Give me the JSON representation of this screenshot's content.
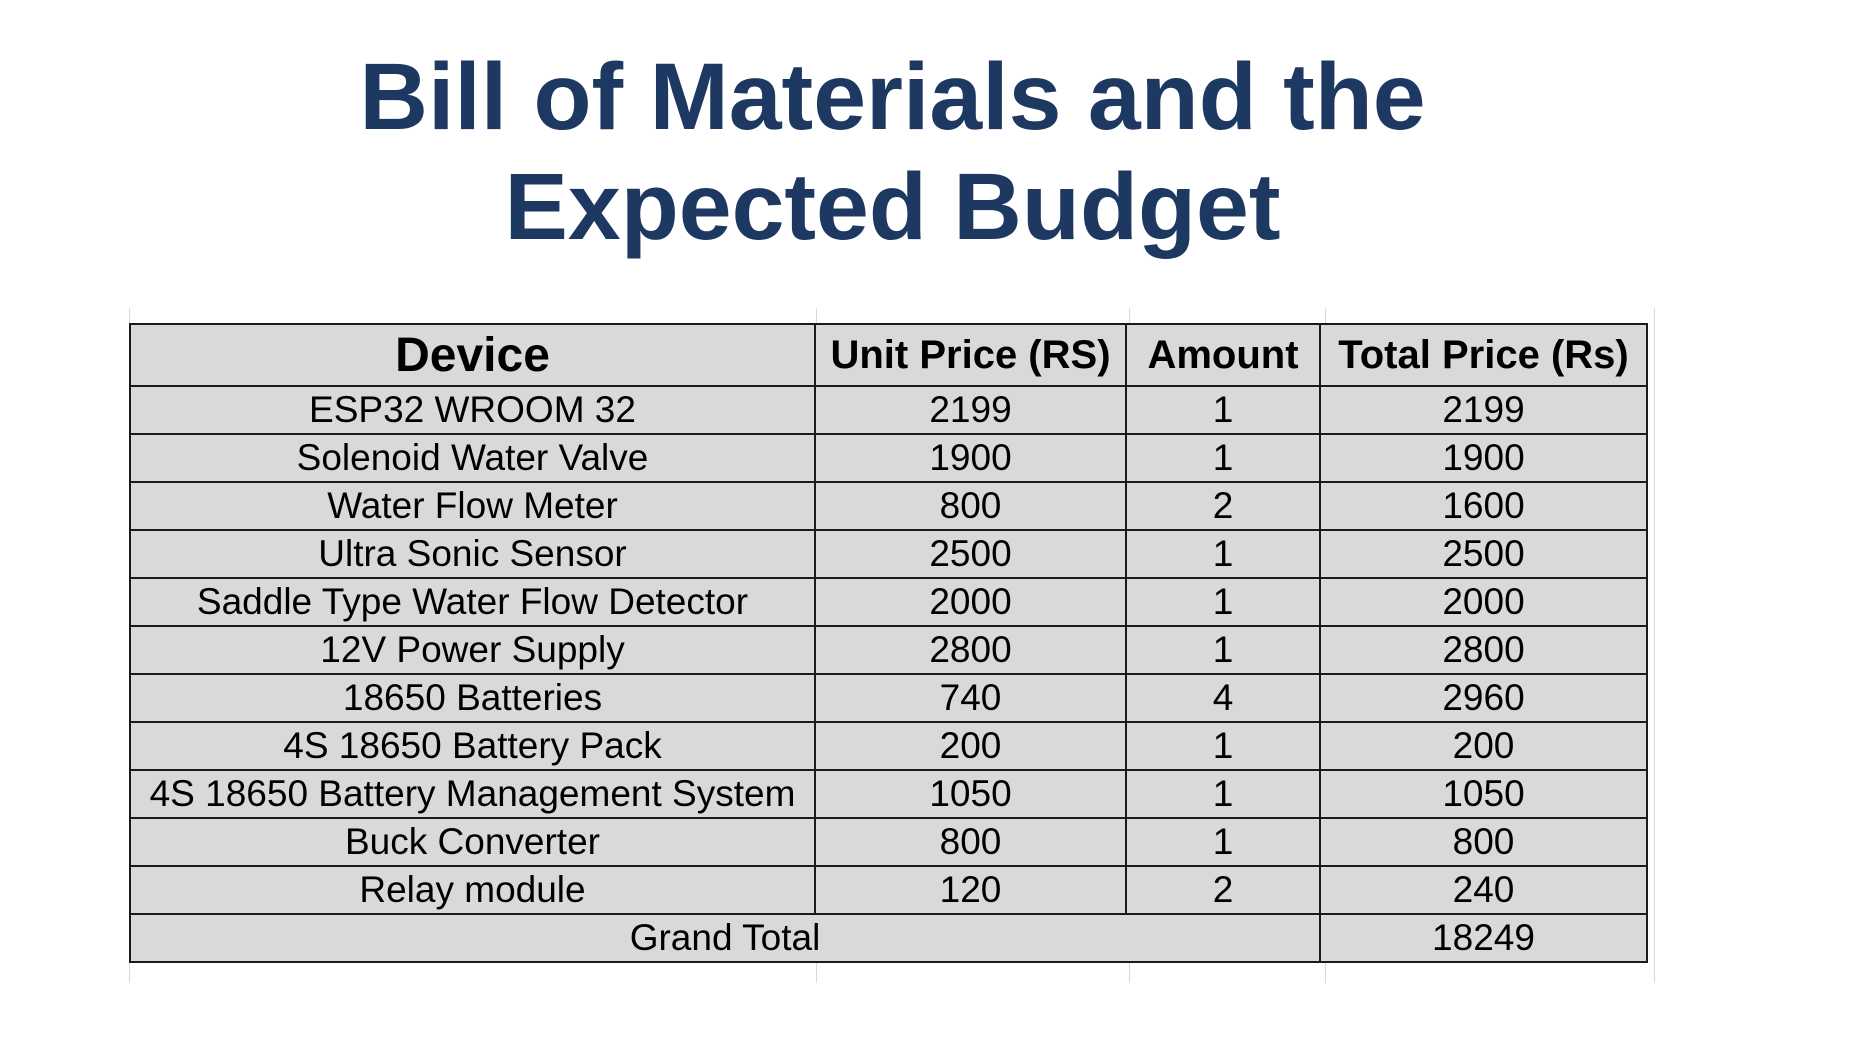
{
  "slide": {
    "title_line1": "Bill of Materials and the",
    "title_line2": "Expected Budget"
  },
  "table": {
    "headers": [
      "Device",
      "Unit Price (RS)",
      "Amount",
      "Total Price (Rs)"
    ],
    "rows": [
      {
        "device": "ESP32 WROOM 32",
        "unit_price": "2199",
        "amount": "1",
        "total_price": "2199"
      },
      {
        "device": "Solenoid Water Valve",
        "unit_price": "1900",
        "amount": "1",
        "total_price": "1900"
      },
      {
        "device": "Water Flow Meter",
        "unit_price": "800",
        "amount": "2",
        "total_price": "1600"
      },
      {
        "device": "Ultra Sonic Sensor",
        "unit_price": "2500",
        "amount": "1",
        "total_price": "2500"
      },
      {
        "device": "Saddle Type Water Flow Detector",
        "unit_price": "2000",
        "amount": "1",
        "total_price": "2000"
      },
      {
        "device": "12V Power Supply",
        "unit_price": "2800",
        "amount": "1",
        "total_price": "2800"
      },
      {
        "device": "18650 Batteries",
        "unit_price": "740",
        "amount": "4",
        "total_price": "2960"
      },
      {
        "device": "4S 18650 Battery Pack",
        "unit_price": "200",
        "amount": "1",
        "total_price": "200"
      },
      {
        "device": "4S 18650 Battery Management System",
        "unit_price": "1050",
        "amount": "1",
        "total_price": "1050"
      },
      {
        "device": "Buck Converter",
        "unit_price": "800",
        "amount": "1",
        "total_price": "800"
      },
      {
        "device": "Relay module",
        "unit_price": "120",
        "amount": "2",
        "total_price": "240"
      }
    ],
    "footer": {
      "label": "Grand Total",
      "total": "18249"
    }
  }
}
